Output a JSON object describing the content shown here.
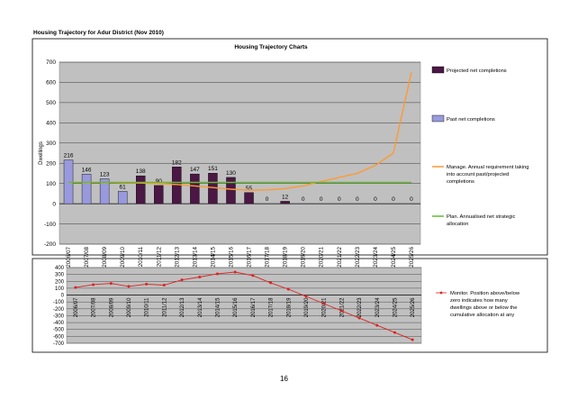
{
  "page": {
    "title": "Housing Trajectory for Adur District (Nov 2010)",
    "page_number": "16"
  },
  "chart_data": [
    {
      "type": "bar",
      "title": "Housing Trajectory Charts",
      "ylabel": "Dwellings",
      "ylim": [
        -200,
        700
      ],
      "yticks": [
        -200,
        -100,
        0,
        100,
        200,
        300,
        400,
        500,
        600,
        700
      ],
      "grid": true,
      "legend_position": "right",
      "categories": [
        "2006/07",
        "2007/08",
        "2008/09",
        "2009/10",
        "2010/11",
        "2011/12",
        "2012/13",
        "2013/14",
        "2014/15",
        "2015/16",
        "2016/17",
        "2017/18",
        "2018/19",
        "2019/20",
        "2020/21",
        "2021/22",
        "2022/23",
        "2023/24",
        "2024/25",
        "2025/26"
      ],
      "series": [
        {
          "name": "Projected net completions",
          "kind": "bar",
          "color": "#4b1744",
          "values": [
            null,
            null,
            null,
            null,
            138,
            90,
            182,
            147,
            151,
            130,
            55,
            0,
            12,
            0,
            0,
            0,
            0,
            0,
            0,
            0
          ],
          "labels": [
            "",
            "",
            "",
            "",
            "138",
            "90",
            "182",
            "147",
            "151",
            "130",
            "55",
            "0",
            "12",
            "0",
            "0",
            "0",
            "0",
            "0",
            "0",
            "0"
          ]
        },
        {
          "name": "Past net completions",
          "kind": "bar",
          "color": "#9999dd",
          "values": [
            216,
            146,
            123,
            61,
            null,
            null,
            null,
            null,
            null,
            null,
            null,
            null,
            null,
            null,
            null,
            null,
            null,
            null,
            null,
            null
          ],
          "labels": [
            "216",
            "146",
            "123",
            "61",
            "",
            "",
            "",
            "",
            "",
            "",
            "",
            "",
            "",
            "",
            "",
            "",
            "",
            "",
            "",
            ""
          ]
        },
        {
          "name": "Manage. Annual requirement taking into account past/projected completions",
          "kind": "line",
          "color": "#ff9933",
          "values": [
            105,
            104,
            104,
            103,
            102,
            99,
            95,
            88,
            80,
            72,
            67,
            68,
            75,
            88,
            110,
            130,
            150,
            190,
            250,
            650
          ]
        },
        {
          "name": "Plan. Annualised net strategic allocation",
          "kind": "line",
          "color": "#66bb33",
          "values": [
            105,
            105,
            105,
            105,
            105,
            105,
            105,
            105,
            105,
            105,
            105,
            105,
            105,
            105,
            105,
            105,
            105,
            105,
            105,
            105
          ]
        }
      ]
    },
    {
      "type": "line",
      "title": "",
      "ylim": [
        -700,
        400
      ],
      "yticks": [
        -700,
        -600,
        -500,
        -400,
        -300,
        -200,
        -100,
        0,
        100,
        200,
        300,
        400
      ],
      "grid": true,
      "legend_position": "right",
      "categories": [
        "2006/07",
        "2007/08",
        "2008/09",
        "2009/10",
        "2010/11",
        "2011/12",
        "2012/13",
        "2013/14",
        "2014/15",
        "2015/16",
        "2016/17",
        "2017/18",
        "2018/19",
        "2019/20",
        "2020/21",
        "2021/22",
        "2022/23",
        "2023/24",
        "2024/25",
        "2025/26"
      ],
      "series": [
        {
          "name": "Monitor. Position above/below zero indicates how many dwellings above or below the cumulative allocation at any point in time",
          "color": "#dd2222",
          "values": [
            111,
            152,
            170,
            126,
            159,
            144,
            221,
            263,
            309,
            334,
            284,
            179,
            86,
            -19,
            -124,
            -229,
            -334,
            -439,
            -544,
            -649
          ]
        }
      ]
    }
  ]
}
